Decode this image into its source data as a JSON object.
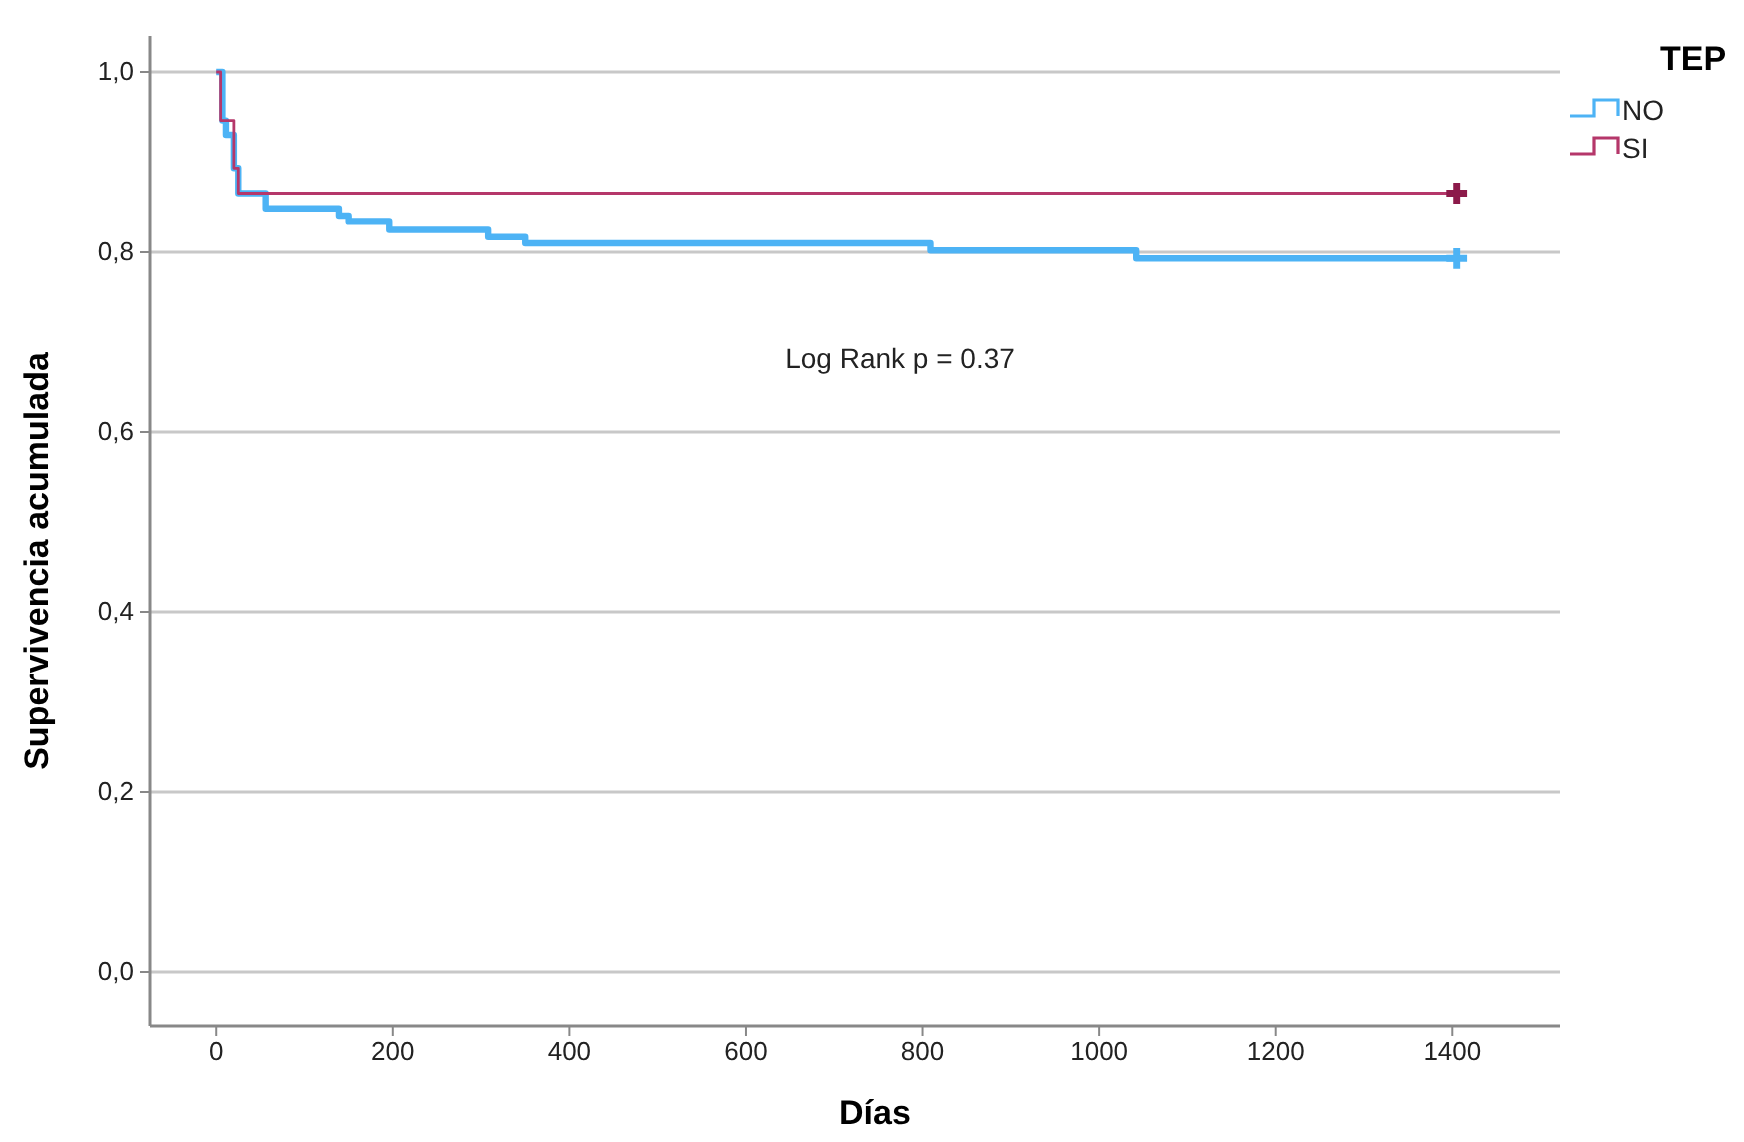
{
  "chart_data": {
    "type": "step",
    "xlabel": "Días",
    "ylabel": "Supervivencia acumulada",
    "legend_title": "TEP",
    "legend": "top right",
    "xlim": [
      -75,
      1522
    ],
    "xticks": [
      0,
      200,
      400,
      600,
      800,
      1000,
      1200,
      1400
    ],
    "ylim": [
      -0.06,
      1.04
    ],
    "yticks": [
      {
        "value": 0,
        "label": "0,0"
      },
      {
        "value": 0.2,
        "label": "0,2"
      },
      {
        "value": 0.4,
        "label": "0,4"
      },
      {
        "value": 0.6,
        "label": "0,6"
      },
      {
        "value": 0.8,
        "label": "0,8"
      },
      {
        "value": 1.0,
        "label": "1,0"
      }
    ],
    "grid": "y",
    "annotations": [
      "Log Rank p = 0.37"
    ],
    "series": [
      {
        "name": "NO",
        "color": "#4db3f5",
        "x": [
          0,
          7,
          11,
          20,
          25,
          56,
          139,
          150,
          196,
          308,
          350,
          809,
          1042,
          1405
        ],
        "values": [
          1.0,
          0.946,
          0.93,
          0.893,
          0.865,
          0.848,
          0.84,
          0.834,
          0.825,
          0.817,
          0.81,
          0.802,
          0.793,
          0.793
        ]
      },
      {
        "name": "SI",
        "color": "#b5376a",
        "x": [
          0,
          5,
          20,
          25,
          1405
        ],
        "values": [
          1.0,
          0.946,
          0.893,
          0.865,
          0.865
        ]
      },
      {
        "type": "scatter",
        "marker": "cross",
        "color": "#4db3f5",
        "x": [
          1405
        ],
        "values": [
          0.793
        ]
      },
      {
        "type": "scatter",
        "marker": "cross",
        "color": "#8c1a4a",
        "x": [
          1405
        ],
        "values": [
          0.865
        ]
      }
    ]
  }
}
